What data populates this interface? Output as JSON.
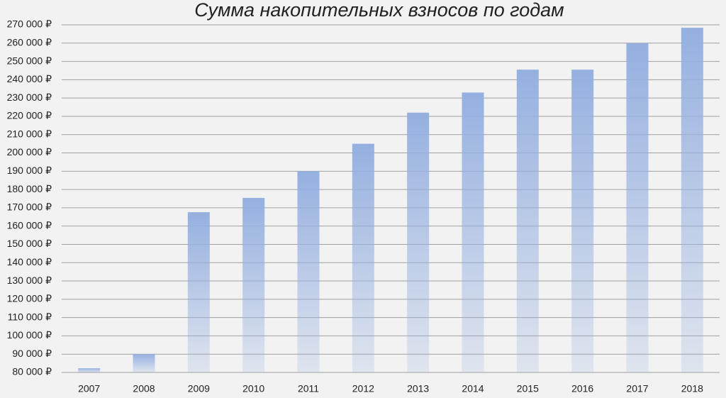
{
  "chart_data": {
    "type": "bar",
    "title": "Сумма накопительных взносов по годам",
    "categories": [
      "2007",
      "2008",
      "2009",
      "2010",
      "2011",
      "2012",
      "2013",
      "2014",
      "2015",
      "2016",
      "2017",
      "2018"
    ],
    "values": [
      82300,
      90000,
      167600,
      175400,
      190000,
      205000,
      222000,
      233000,
      245500,
      245500,
      260000,
      268400
    ],
    "color": "#95b0e0",
    "ylim": [
      80000,
      270000
    ],
    "yticks": [
      {
        "value": 80000,
        "label": "80 000 ₽"
      },
      {
        "value": 90000,
        "label": "90 000 ₽"
      },
      {
        "value": 100000,
        "label": "100 000 ₽"
      },
      {
        "value": 110000,
        "label": "110 000 ₽"
      },
      {
        "value": 120000,
        "label": "120 000 ₽"
      },
      {
        "value": 130000,
        "label": "130 000 ₽"
      },
      {
        "value": 140000,
        "label": "140 000 ₽"
      },
      {
        "value": 150000,
        "label": "150 000 ₽"
      },
      {
        "value": 160000,
        "label": "160 000 ₽"
      },
      {
        "value": 170000,
        "label": "170 000 ₽"
      },
      {
        "value": 180000,
        "label": "180 000 ₽"
      },
      {
        "value": 190000,
        "label": "190 000 ₽"
      },
      {
        "value": 200000,
        "label": "200 000 ₽"
      },
      {
        "value": 210000,
        "label": "210 000 ₽"
      },
      {
        "value": 220000,
        "label": "220 000 ₽"
      },
      {
        "value": 230000,
        "label": "230 000 ₽"
      },
      {
        "value": 240000,
        "label": "240 000 ₽"
      },
      {
        "value": 250000,
        "label": "250 000 ₽"
      },
      {
        "value": 260000,
        "label": "260 000 ₽"
      },
      {
        "value": 270000,
        "label": "270 000 ₽"
      }
    ],
    "grid": true
  }
}
